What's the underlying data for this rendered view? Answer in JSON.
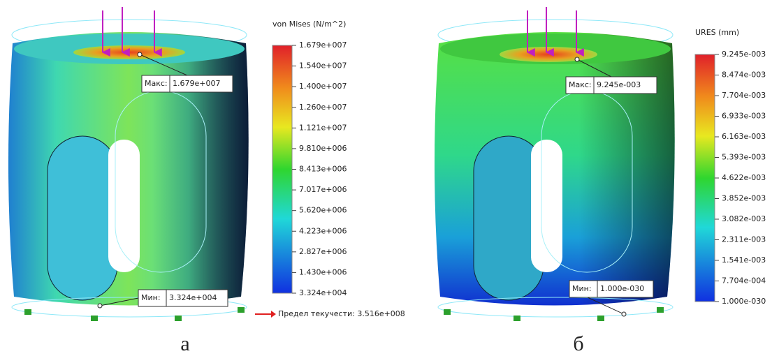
{
  "panels": [
    {
      "legend_title": "von Mises (N/m^2)",
      "legend_ticks": [
        "1.679e+007",
        "1.540e+007",
        "1.400e+007",
        "1.260e+007",
        "1.121e+007",
        "9.810e+006",
        "8.413e+006",
        "7.017e+006",
        "5.620e+006",
        "4.223e+006",
        "2.827e+006",
        "1.430e+006",
        "3.324e+004"
      ],
      "max_label": "Макс:",
      "max_value": "1.679e+007",
      "min_label": "Мин:",
      "min_value": "3.324e+004",
      "yield_text": "Предел текучести: 3.516e+008",
      "caption": "а"
    },
    {
      "legend_title": "URES (mm)",
      "legend_ticks": [
        "9.245e-003",
        "8.474e-003",
        "7.704e-003",
        "6.933e-003",
        "6.163e-003",
        "5.393e-003",
        "4.622e-003",
        "3.852e-003",
        "3.082e-003",
        "2.311e-003",
        "1.541e-003",
        "7.704e-004",
        "1.000e-030"
      ],
      "max_label": "Макс:",
      "max_value": "9.245e-003",
      "min_label": "Мин:",
      "min_value": "1.000e-030",
      "caption": "б"
    }
  ]
}
